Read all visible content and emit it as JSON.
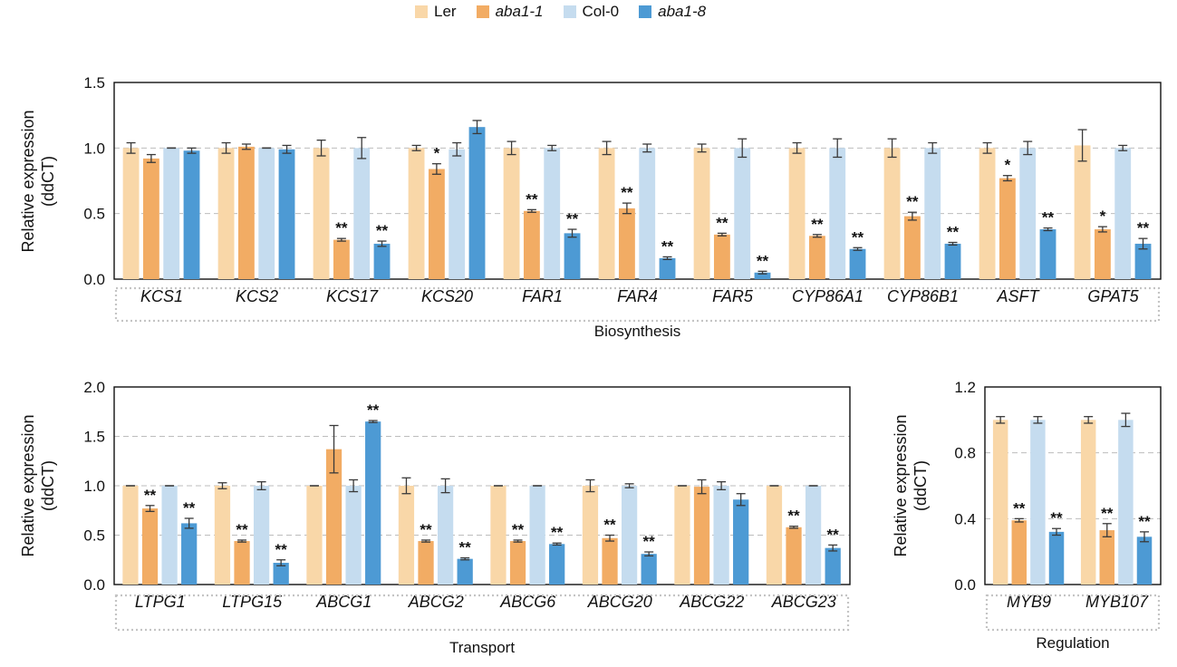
{
  "legend": [
    {
      "label": "Ler",
      "color": "#f9d7a8",
      "italic": false
    },
    {
      "label": "aba1-1",
      "color": "#f2ac64",
      "italic": true
    },
    {
      "label": "Col-0",
      "color": "#c5dcef",
      "italic": false
    },
    {
      "label": "aba1-8",
      "color": "#4d9ad4",
      "italic": true
    }
  ],
  "chart_data": [
    {
      "type": "bar",
      "group_label": "Biosynthesis",
      "ylabel": "Relative expression (ddCT)",
      "ylim": [
        0,
        1.5
      ],
      "yticks": [
        "0.0",
        "0.5",
        "1.0",
        "1.5"
      ],
      "categories": [
        "KCS1",
        "KCS2",
        "KCS17",
        "KCS20",
        "FAR1",
        "FAR4",
        "FAR5",
        "CYP86A1",
        "CYP86B1",
        "ASFT",
        "GPAT5"
      ],
      "series": [
        {
          "name": "Ler",
          "values": [
            1.0,
            1.0,
            1.0,
            1.0,
            1.0,
            1.0,
            1.0,
            1.0,
            1.0,
            1.0,
            1.02
          ],
          "errors": [
            0.04,
            0.04,
            0.06,
            0.02,
            0.05,
            0.05,
            0.03,
            0.04,
            0.07,
            0.04,
            0.12
          ],
          "sig": [
            "",
            "",
            "",
            "",
            "",
            "",
            "",
            "",
            "",
            "",
            ""
          ]
        },
        {
          "name": "aba1-1",
          "values": [
            0.92,
            1.01,
            0.3,
            0.84,
            0.52,
            0.54,
            0.34,
            0.33,
            0.48,
            0.77,
            0.38
          ],
          "errors": [
            0.03,
            0.02,
            0.01,
            0.04,
            0.01,
            0.04,
            0.01,
            0.01,
            0.03,
            0.02,
            0.02
          ],
          "sig": [
            "",
            "",
            "**",
            "*",
            "**",
            "**",
            "**",
            "**",
            "**",
            "*",
            "*"
          ]
        },
        {
          "name": "Col-0",
          "values": [
            1.0,
            1.0,
            1.0,
            0.99,
            1.0,
            1.0,
            1.0,
            1.0,
            1.0,
            1.0,
            1.0
          ],
          "errors": [
            0.0,
            0.0,
            0.08,
            0.05,
            0.02,
            0.03,
            0.07,
            0.07,
            0.04,
            0.05,
            0.02
          ],
          "sig": [
            "",
            "",
            "",
            "",
            "",
            "",
            "",
            "",
            "",
            "",
            ""
          ]
        },
        {
          "name": "aba1-8",
          "values": [
            0.98,
            0.99,
            0.27,
            1.16,
            0.35,
            0.16,
            0.05,
            0.23,
            0.27,
            0.38,
            0.27
          ],
          "errors": [
            0.02,
            0.03,
            0.02,
            0.05,
            0.03,
            0.01,
            0.01,
            0.01,
            0.01,
            0.01,
            0.04
          ],
          "sig": [
            "",
            "",
            "**",
            "",
            "**",
            "**",
            "**",
            "**",
            "**",
            "**",
            "**"
          ]
        }
      ]
    },
    {
      "type": "bar",
      "group_label": "Transport",
      "ylabel": "Relative expression (ddCT)",
      "ylim": [
        0,
        2.0
      ],
      "yticks": [
        "0.0",
        "0.5",
        "1.0",
        "1.5",
        "2.0"
      ],
      "categories": [
        "LTPG1",
        "LTPG15",
        "ABCG1",
        "ABCG2",
        "ABCG6",
        "ABCG20",
        "ABCG22",
        "ABCG23"
      ],
      "series": [
        {
          "name": "Ler",
          "values": [
            1.0,
            1.0,
            1.0,
            1.0,
            1.0,
            1.0,
            1.0,
            1.0
          ],
          "errors": [
            0.0,
            0.03,
            0.0,
            0.08,
            0.0,
            0.06,
            0.0,
            0.0
          ],
          "sig": [
            "",
            "",
            "",
            "",
            "",
            "",
            "",
            ""
          ]
        },
        {
          "name": "aba1-1",
          "values": [
            0.77,
            0.44,
            1.37,
            0.44,
            0.44,
            0.47,
            0.99,
            0.58
          ],
          "errors": [
            0.03,
            0.01,
            0.24,
            0.01,
            0.01,
            0.03,
            0.07,
            0.01
          ],
          "sig": [
            "**",
            "**",
            "",
            "**",
            "**",
            "**",
            "",
            "**"
          ]
        },
        {
          "name": "Col-0",
          "values": [
            1.0,
            1.0,
            1.0,
            1.0,
            1.0,
            1.0,
            1.0,
            1.0
          ],
          "errors": [
            0.0,
            0.04,
            0.06,
            0.07,
            0.0,
            0.02,
            0.04,
            0.0
          ],
          "sig": [
            "",
            "",
            "",
            "",
            "",
            "",
            "",
            ""
          ]
        },
        {
          "name": "aba1-8",
          "values": [
            0.62,
            0.22,
            1.65,
            0.26,
            0.41,
            0.31,
            0.86,
            0.37
          ],
          "errors": [
            0.05,
            0.03,
            0.01,
            0.01,
            0.01,
            0.02,
            0.06,
            0.03
          ],
          "sig": [
            "**",
            "**",
            "**",
            "**",
            "**",
            "**",
            "",
            "**"
          ]
        }
      ]
    },
    {
      "type": "bar",
      "group_label": "Regulation",
      "ylabel": "Relative expression (ddCT)",
      "ylim": [
        0,
        1.2
      ],
      "yticks": [
        "0.0",
        "0.4",
        "0.8",
        "1.2"
      ],
      "categories": [
        "MYB9",
        "MYB107"
      ],
      "series": [
        {
          "name": "Ler",
          "values": [
            1.0,
            1.0
          ],
          "errors": [
            0.02,
            0.02
          ],
          "sig": [
            "",
            ""
          ]
        },
        {
          "name": "aba1-1",
          "values": [
            0.39,
            0.33
          ],
          "errors": [
            0.01,
            0.04
          ],
          "sig": [
            "**",
            "**"
          ]
        },
        {
          "name": "Col-0",
          "values": [
            1.0,
            1.0
          ],
          "errors": [
            0.02,
            0.04
          ],
          "sig": [
            "",
            ""
          ]
        },
        {
          "name": "aba1-8",
          "values": [
            0.32,
            0.29
          ],
          "errors": [
            0.02,
            0.03
          ],
          "sig": [
            "**",
            "**"
          ]
        }
      ]
    }
  ]
}
